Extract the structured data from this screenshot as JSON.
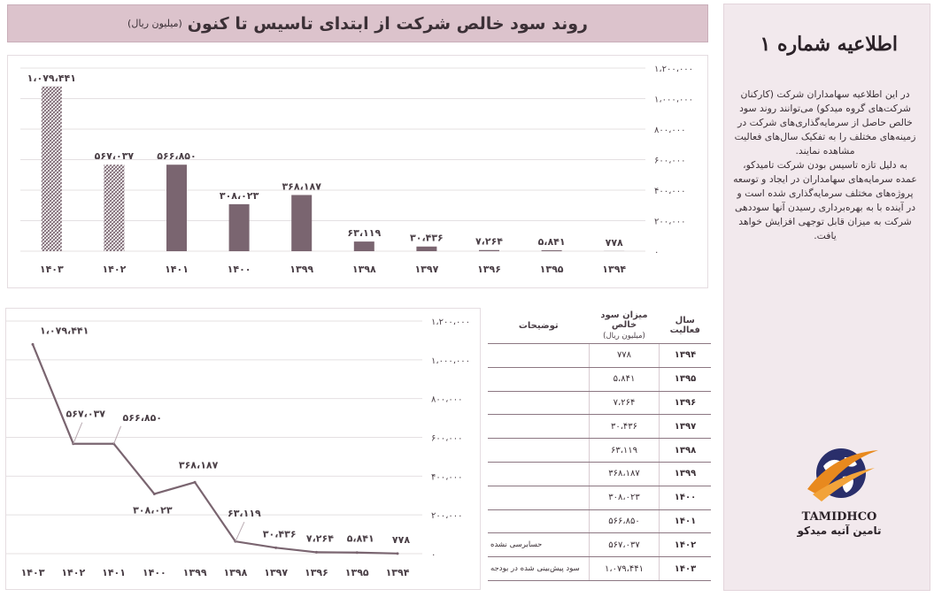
{
  "title": {
    "main": "روند سود خالص شرکت از ابتدای تاسیس تا کنون",
    "sub": "(میلیون ریال)"
  },
  "sidebar": {
    "title": "اطلاعیه شماره ۱",
    "paragraph1": "در این اطلاعیه سهامداران شرکت (کارکنان شرکت‌های گروه میدکو) می‌توانند روند سود خالص حاصل از سرمایه‌گذاری‌های شرکت در زمینه‌های مختلف را به تفکیک سال‌های فعالیت مشاهده نمایند.",
    "paragraph2": "به دلیل تازه تاسیس بودن شرکت تامیدکو، عمده سرمایه‌های سهامداران در ایجاد و توسعه پروژه‌های مختلف سرمایه‌گذاری شده است و در آینده با به بهره‌برداری رسیدن آنها سوددهی شرکت به میزان قابل توجهی افزایش خواهد یافت.",
    "logo_name": "TAMIDHCO",
    "logo_fa": "تامین آتیه میدکو"
  },
  "colors": {
    "bar": "#7a6570",
    "hatch": "#7a6570",
    "line": "#7a6570",
    "title_bg": "#dcc3cc",
    "side_bg": "#f2e9ed"
  },
  "table": {
    "headers": {
      "year": "سال فعالیت",
      "profit": "میزان سود خالص",
      "profit_unit": "(میلیون ریال)",
      "notes": "توضیحات"
    },
    "rows": [
      {
        "year": "۱۳۹۴",
        "value": "۷۷۸",
        "note": ""
      },
      {
        "year": "۱۳۹۵",
        "value": "۵،۸۴۱",
        "note": ""
      },
      {
        "year": "۱۳۹۶",
        "value": "۷،۲۶۴",
        "note": ""
      },
      {
        "year": "۱۳۹۷",
        "value": "۳۰،۴۳۶",
        "note": ""
      },
      {
        "year": "۱۳۹۸",
        "value": "۶۳،۱۱۹",
        "note": ""
      },
      {
        "year": "۱۳۹۹",
        "value": "۳۶۸،۱۸۷",
        "note": ""
      },
      {
        "year": "۱۴۰۰",
        "value": "۳۰۸،۰۲۳",
        "note": ""
      },
      {
        "year": "۱۴۰۱",
        "value": "۵۶۶،۸۵۰",
        "note": ""
      },
      {
        "year": "۱۴۰۲",
        "value": "۵۶۷،۰۳۷",
        "note": "حسابرسی نشده"
      },
      {
        "year": "۱۴۰۳",
        "value": "۱،۰۷۹،۴۴۱",
        "note": "سود پیش‌بینی شده در بودجه"
      }
    ]
  },
  "chart_data": [
    {
      "type": "bar",
      "categories": [
        "۱۴۰۳",
        "۱۴۰۲",
        "۱۴۰۱",
        "۱۴۰۰",
        "۱۳۹۹",
        "۱۳۹۸",
        "۱۳۹۷",
        "۱۳۹۶",
        "۱۳۹۵",
        "۱۳۹۴"
      ],
      "values": [
        1079441,
        567037,
        566850,
        308023,
        368187,
        63119,
        30436,
        7264,
        5841,
        778
      ],
      "value_labels": [
        "۱،۰۷۹،۴۴۱",
        "۵۶۷،۰۳۷",
        "۵۶۶،۸۵۰",
        "۳۰۸،۰۲۳",
        "۳۶۸،۱۸۷",
        "۶۳،۱۱۹",
        "۳۰،۴۳۶",
        "۷،۲۶۴",
        "۵،۸۴۱",
        "۷۷۸"
      ],
      "hatched": [
        true,
        true,
        false,
        false,
        false,
        false,
        false,
        false,
        false,
        false
      ],
      "ylim": [
        0,
        1200000
      ],
      "yticks": [
        0,
        200000,
        400000,
        600000,
        800000,
        1000000,
        1200000
      ],
      "ytick_labels": [
        "۰",
        "۲۰۰،۰۰۰",
        "۴۰۰،۰۰۰",
        "۶۰۰،۰۰۰",
        "۸۰۰،۰۰۰",
        "۱،۰۰۰،۰۰۰",
        "۱،۲۰۰،۰۰۰"
      ],
      "yaxis_side": "right",
      "grid": true
    },
    {
      "type": "line",
      "categories": [
        "۱۴۰۳",
        "۱۴۰۲",
        "۱۴۰۱",
        "۱۴۰۰",
        "۱۳۹۹",
        "۱۳۹۸",
        "۱۳۹۷",
        "۱۳۹۶",
        "۱۳۹۵",
        "۱۳۹۴"
      ],
      "values": [
        1079441,
        567037,
        566850,
        308023,
        368187,
        63119,
        30436,
        7264,
        5841,
        778
      ],
      "value_labels": [
        "۱،۰۷۹،۴۴۱",
        "۵۶۷،۰۳۷",
        "۵۶۶،۸۵۰",
        "۳۰۸،۰۲۳",
        "۳۶۸،۱۸۷",
        "۶۳،۱۱۹",
        "۳۰،۴۳۶",
        "۷،۲۶۴",
        "۵،۸۴۱",
        "۷۷۸"
      ],
      "ylim": [
        0,
        1200000
      ],
      "yticks": [
        0,
        200000,
        400000,
        600000,
        800000,
        1000000,
        1200000
      ],
      "ytick_labels": [
        "۰",
        "۲۰۰،۰۰۰",
        "۴۰۰،۰۰۰",
        "۶۰۰،۰۰۰",
        "۸۰۰،۰۰۰",
        "۱،۰۰۰،۰۰۰",
        "۱،۲۰۰،۰۰۰"
      ],
      "yaxis_side": "right",
      "grid": true
    }
  ]
}
